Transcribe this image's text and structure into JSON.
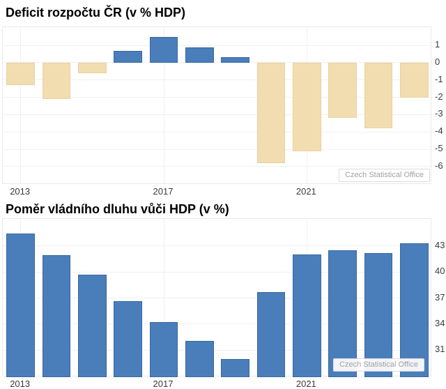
{
  "source_label": "Czech Statistical Office",
  "colors": {
    "background": "#ffffff",
    "title_text": "#000000",
    "axis_text": "#3a3a3a",
    "grid": "#eef0f2",
    "plot_border": "#e7e9eb",
    "credit_text": "#a1a1a1",
    "credit_border": "#dcdcdc",
    "bar_blue": "#4a7ebb",
    "bar_blue_border": "#3a689d",
    "bar_tan": "#f2ddb0",
    "bar_tan_border": "#ecd09e"
  },
  "chart_data": [
    {
      "type": "bar",
      "title": "Deficit rozpočtu ČR (v % HDP)",
      "categories": [
        "2013",
        "2014",
        "2015",
        "2016",
        "2017",
        "2018",
        "2019",
        "2020",
        "2021",
        "2022",
        "2023",
        "2024"
      ],
      "values": [
        -1.3,
        -2.1,
        -0.6,
        0.7,
        1.5,
        0.9,
        0.3,
        -5.8,
        -5.1,
        -3.2,
        -3.8,
        -2.0
      ],
      "xlabel": "",
      "ylabel": "",
      "ylim": [
        -7.05,
        2.05
      ],
      "y_ticks": [
        1,
        0,
        -1,
        -2,
        -3,
        -4,
        -5,
        -6
      ],
      "y_axis_side": "right",
      "x_tick_labels": [
        "2013",
        "2017",
        "2021"
      ],
      "x_tick_indices": [
        0,
        4,
        8
      ],
      "baseline": 0,
      "grid": true,
      "legend": "none",
      "positive_color": "#4a7ebb",
      "positive_border": "#3a689d",
      "negative_color": "#f2ddb0",
      "negative_border": "#ecd09e",
      "source_label": "Czech Statistical Office"
    },
    {
      "type": "bar",
      "title": "Poměr vládního dluhu vůči HDP (v %)",
      "categories": [
        "2013",
        "2014",
        "2015",
        "2016",
        "2017",
        "2018",
        "2019",
        "2020",
        "2021",
        "2022",
        "2023",
        "2024"
      ],
      "values": [
        44.4,
        41.9,
        39.7,
        36.6,
        34.2,
        32.1,
        30.0,
        37.7,
        42.0,
        42.5,
        42.2,
        43.3
      ],
      "xlabel": "",
      "ylabel": "",
      "ylim": [
        27.9,
        46.1
      ],
      "y_ticks": [
        43,
        40,
        37,
        34,
        31
      ],
      "y_axis_side": "right",
      "x_tick_labels": [
        "2013",
        "2017",
        "2021"
      ],
      "x_tick_indices": [
        0,
        4,
        8
      ],
      "baseline": "min",
      "grid": true,
      "legend": "none",
      "positive_color": "#4a7ebb",
      "positive_border": "#3a689d",
      "negative_color": "#4a7ebb",
      "negative_border": "#3a689d",
      "source_label": "Czech Statistical Office"
    }
  ]
}
